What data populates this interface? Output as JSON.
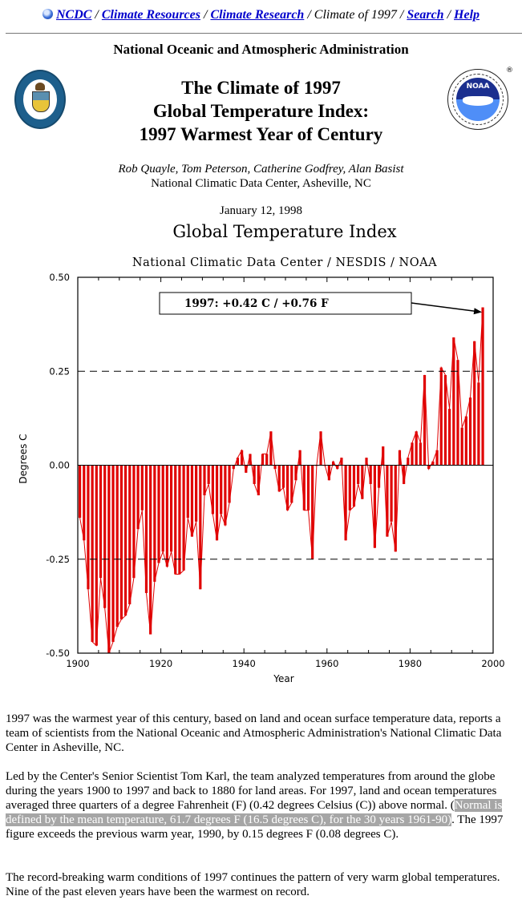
{
  "nav": {
    "icon": "noaa-globe-icon",
    "links": [
      "NCDC",
      "Climate Resources",
      "Climate Research"
    ],
    "current": "Climate of 1997",
    "links_after": [
      "Search",
      "Help"
    ],
    "separator": "/"
  },
  "header": {
    "org": "National Oceanic and Atmospheric Administration",
    "title_lines": [
      "The Climate of 1997",
      "Global Temperature Index:",
      "1997 Warmest Year of Century"
    ],
    "left_logo": "department-of-commerce-seal-icon",
    "right_logo": "noaa-logo-icon",
    "noaa_logo_text": "NOAA",
    "registered_mark": "®"
  },
  "authors": {
    "names": "Rob Quayle, Tom Peterson, Catherine Godfrey, Alan Basist",
    "affiliation": "National Climatic Data Center, Asheville, NC"
  },
  "date": "January 12, 1998",
  "chart_data": {
    "type": "bar",
    "title": "Global Temperature Index",
    "subtitle": "National Climatic Data Center / NESDIS / NOAA",
    "xlabel": "Year",
    "ylabel": "Degrees C",
    "xlim": [
      1900,
      2000
    ],
    "ylim": [
      -0.5,
      0.5
    ],
    "x_ticks": [
      "1900",
      "1920",
      "1940",
      "1960",
      "1980",
      "2000"
    ],
    "y_ticks": [
      "0.50",
      "0.25",
      "0.00",
      "-0.25",
      "-0.50"
    ],
    "reference_lines": [
      0.25,
      -0.25
    ],
    "grid": false,
    "bar_color": "#e00000",
    "annotation": {
      "text": "1997:  +0.42 C / +0.76 F",
      "points_to_year": 1997
    },
    "x": [
      1900,
      1901,
      1902,
      1903,
      1904,
      1905,
      1906,
      1907,
      1908,
      1909,
      1910,
      1911,
      1912,
      1913,
      1914,
      1915,
      1916,
      1917,
      1918,
      1919,
      1920,
      1921,
      1922,
      1923,
      1924,
      1925,
      1926,
      1927,
      1928,
      1929,
      1930,
      1931,
      1932,
      1933,
      1934,
      1935,
      1936,
      1937,
      1938,
      1939,
      1940,
      1941,
      1942,
      1943,
      1944,
      1945,
      1946,
      1947,
      1948,
      1949,
      1950,
      1951,
      1952,
      1953,
      1954,
      1955,
      1956,
      1957,
      1958,
      1959,
      1960,
      1961,
      1962,
      1963,
      1964,
      1965,
      1966,
      1967,
      1968,
      1969,
      1970,
      1971,
      1972,
      1973,
      1974,
      1975,
      1976,
      1977,
      1978,
      1979,
      1980,
      1981,
      1982,
      1983,
      1984,
      1985,
      1986,
      1987,
      1988,
      1989,
      1990,
      1991,
      1992,
      1993,
      1994,
      1995,
      1996,
      1997
    ],
    "values": [
      -0.14,
      -0.2,
      -0.33,
      -0.47,
      -0.48,
      -0.3,
      -0.38,
      -0.5,
      -0.47,
      -0.43,
      -0.41,
      -0.4,
      -0.37,
      -0.3,
      -0.17,
      -0.12,
      -0.34,
      -0.45,
      -0.31,
      -0.26,
      -0.23,
      -0.27,
      -0.23,
      -0.29,
      -0.29,
      -0.28,
      -0.14,
      -0.19,
      -0.15,
      -0.33,
      -0.08,
      -0.05,
      -0.13,
      -0.2,
      -0.13,
      -0.16,
      -0.1,
      -0.01,
      0.02,
      0.04,
      -0.02,
      0.03,
      -0.05,
      -0.08,
      0.03,
      0.03,
      0.09,
      -0.01,
      -0.07,
      -0.06,
      -0.12,
      -0.1,
      -0.04,
      0.04,
      -0.12,
      -0.12,
      -0.25,
      0.0,
      0.09,
      0.0,
      -0.04,
      0.01,
      -0.01,
      0.02,
      -0.2,
      -0.12,
      -0.11,
      -0.05,
      -0.09,
      0.02,
      -0.05,
      -0.22,
      -0.06,
      0.05,
      -0.19,
      -0.15,
      -0.23,
      0.04,
      -0.05,
      0.02,
      0.06,
      0.09,
      0.06,
      0.24,
      -0.01,
      0.01,
      0.04,
      0.26,
      0.24,
      0.15,
      0.34,
      0.28,
      0.1,
      0.13,
      0.18,
      0.33,
      0.22,
      0.42
    ]
  },
  "body": {
    "p1": "1997 was the warmest year of this century, based on land and ocean surface temperature data, reports a team of scientists from the National Oceanic and Atmospheric Administration's National Climatic Data Center in Asheville, NC.",
    "p2_before": "Led by the Center's Senior Scientist Tom Karl, the team analyzed temperatures from around the globe during the years 1900 to 1997 and back to 1880 for land areas. For 1997, land and ocean temperatures averaged three quarters of a degree Fahrenheit (F) (0.42 degrees Celsius (C)) above normal. (",
    "p2_highlight": "Normal is defined by the mean temperature, 61.7 degrees F (16.5 degrees C), for the 30 years 1961-90)",
    "p2_after": ". The 1997 figure exceeds the previous warm year, 1990, by 0.15 degrees F (0.08 degrees C).",
    "p3": "The record-breaking warm conditions of 1997 continues the pattern of very warm global temperatures. Nine of the past eleven years have been the warmest on record."
  }
}
